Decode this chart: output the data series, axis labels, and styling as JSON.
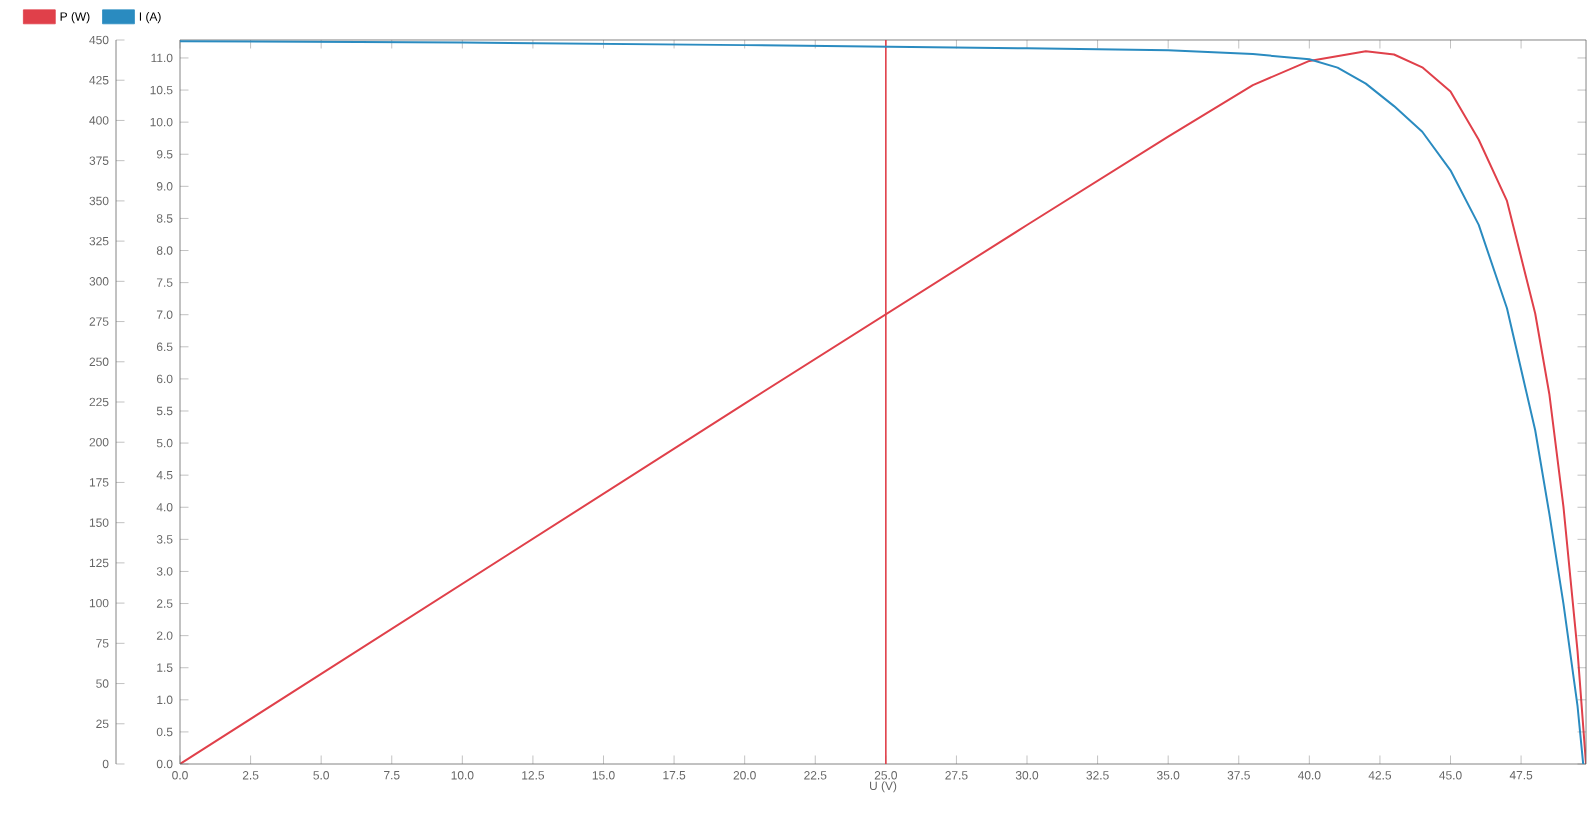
{
  "chart_data": {
    "type": "line",
    "xlabel": "U (V)",
    "legend": "top left",
    "marker": "none",
    "xlim": [
      0,
      49.8
    ],
    "xticks": [
      {
        "value": 0,
        "label": "0.0"
      },
      {
        "value": 2.5,
        "label": "2.5"
      },
      {
        "value": 5,
        "label": "5.0"
      },
      {
        "value": 7.5,
        "label": "7.5"
      },
      {
        "value": 10,
        "label": "10.0"
      },
      {
        "value": 12.5,
        "label": "12.5"
      },
      {
        "value": 15,
        "label": "15.0"
      },
      {
        "value": 17.5,
        "label": "17.5"
      },
      {
        "value": 20,
        "label": "20.0"
      },
      {
        "value": 22.5,
        "label": "22.5"
      },
      {
        "value": 25,
        "label": "25.0"
      },
      {
        "value": 27.5,
        "label": "27.5"
      },
      {
        "value": 30,
        "label": "30.0"
      },
      {
        "value": 32.5,
        "label": "32.5"
      },
      {
        "value": 35,
        "label": "35.0"
      },
      {
        "value": 37.5,
        "label": "37.5"
      },
      {
        "value": 40,
        "label": "40.0"
      },
      {
        "value": 42.5,
        "label": "42.5"
      },
      {
        "value": 45,
        "label": "45.0"
      },
      {
        "value": 47.5,
        "label": "47.5"
      }
    ],
    "ylim": [
      0,
      11.28
    ],
    "yticks": [
      {
        "value": 0,
        "label": "0.0"
      },
      {
        "value": 0.5,
        "label": "0.5"
      },
      {
        "value": 1,
        "label": "1.0"
      },
      {
        "value": 1.5,
        "label": "1.5"
      },
      {
        "value": 2,
        "label": "2.0"
      },
      {
        "value": 2.5,
        "label": "2.5"
      },
      {
        "value": 3,
        "label": "3.0"
      },
      {
        "value": 3.5,
        "label": "3.5"
      },
      {
        "value": 4,
        "label": "4.0"
      },
      {
        "value": 4.5,
        "label": "4.5"
      },
      {
        "value": 5,
        "label": "5.0"
      },
      {
        "value": 5.5,
        "label": "5.5"
      },
      {
        "value": 6,
        "label": "6.0"
      },
      {
        "value": 6.5,
        "label": "6.5"
      },
      {
        "value": 7,
        "label": "7.0"
      },
      {
        "value": 7.5,
        "label": "7.5"
      },
      {
        "value": 8,
        "label": "8.0"
      },
      {
        "value": 8.5,
        "label": "8.5"
      },
      {
        "value": 9,
        "label": "9.0"
      },
      {
        "value": 9.5,
        "label": "9.5"
      },
      {
        "value": 10,
        "label": "10.0"
      },
      {
        "value": 10.5,
        "label": "10.5"
      },
      {
        "value": 11,
        "label": "11.0"
      }
    ],
    "y2lim": [
      0,
      450
    ],
    "y2ticks": [
      0,
      25,
      50,
      75,
      100,
      125,
      150,
      175,
      200,
      225,
      250,
      275,
      300,
      325,
      350,
      375,
      400,
      425,
      450
    ],
    "ref_lines": [
      {
        "axis": "x",
        "value": 25,
        "color": "#e0404a"
      }
    ],
    "series": [
      {
        "name": "P (W)",
        "color": "#e0404a",
        "axis": "y2",
        "x": [
          0,
          10,
          20,
          30,
          35,
          38,
          40,
          42,
          43,
          44,
          45,
          46,
          47,
          48,
          48.5,
          49,
          49.5,
          49.8
        ],
        "values": [
          0,
          112,
          224,
          335,
          390,
          422,
          437,
          443,
          441,
          433,
          418,
          388,
          350,
          280,
          230,
          160,
          70,
          0
        ]
      },
      {
        "name": "I (A)",
        "color": "#2a8bc0",
        "x": [
          0,
          10,
          20,
          30,
          35,
          38,
          40,
          41,
          42,
          43,
          44,
          45,
          46,
          47,
          48,
          48.5,
          49,
          49.5,
          49.7
        ],
        "values": [
          11.26,
          11.24,
          11.2,
          11.15,
          11.12,
          11.06,
          10.98,
          10.85,
          10.6,
          10.25,
          9.85,
          9.25,
          8.4,
          7.1,
          5.2,
          3.9,
          2.5,
          0.9,
          0
        ]
      }
    ]
  }
}
